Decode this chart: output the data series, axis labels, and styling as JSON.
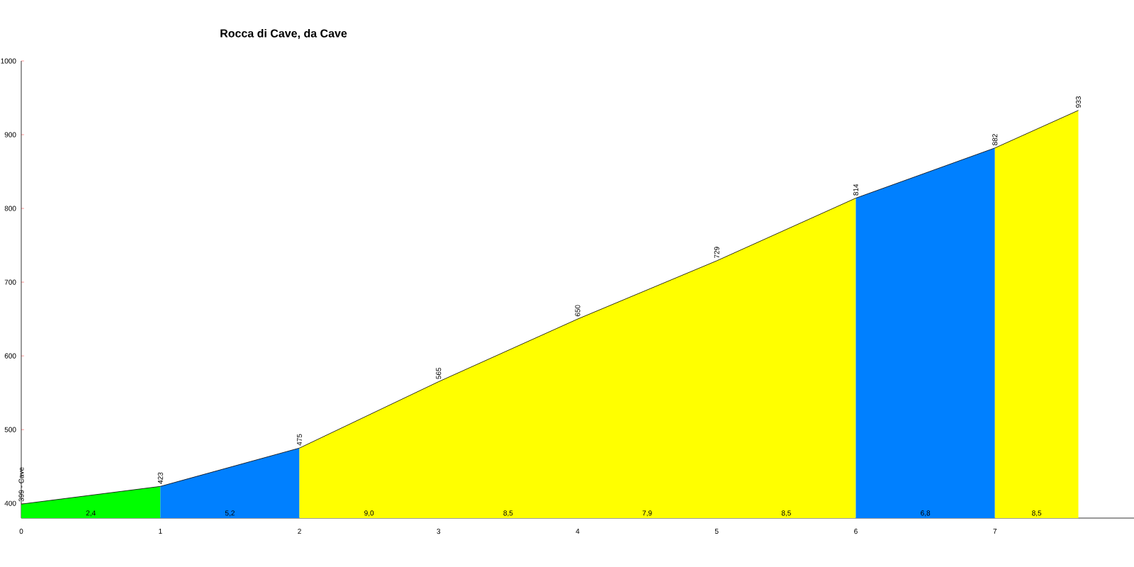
{
  "chart_data": {
    "type": "area",
    "title": "Rocca di Cave, da Cave",
    "xlim": [
      0,
      8
    ],
    "xticks": [
      0,
      1,
      2,
      3,
      4,
      5,
      6,
      7
    ],
    "ylim": [
      380,
      1000
    ],
    "yticks": [
      400,
      500,
      600,
      700,
      800,
      900,
      1000
    ],
    "grid": false,
    "series": [
      {
        "color": "#00ff00",
        "x": [
          0,
          1
        ],
        "values": [
          399,
          423
        ]
      },
      {
        "color": "#0080ff",
        "x": [
          1,
          2
        ],
        "values": [
          423,
          475
        ]
      },
      {
        "color": "#ffff00",
        "x": [
          2,
          3,
          4,
          5,
          6
        ],
        "values": [
          475,
          565,
          650,
          729,
          814
        ]
      },
      {
        "color": "#0080ff",
        "x": [
          6,
          7
        ],
        "values": [
          814,
          882
        ]
      },
      {
        "color": "#ffff00",
        "x": [
          7,
          7.6
        ],
        "values": [
          882,
          933
        ]
      },
      {
        "type": "line",
        "color": "#000000",
        "x": [
          0,
          1,
          2,
          3,
          4,
          5,
          6,
          7,
          7.6
        ],
        "values": [
          399,
          423,
          475,
          565,
          650,
          729,
          814,
          882,
          933
        ],
        "value_labels": [
          "399 - Cave",
          "423",
          "475",
          "565",
          "650",
          "729",
          "814",
          "882",
          "933"
        ]
      }
    ],
    "annotations": [
      {
        "text": "2,4",
        "x": 0.5,
        "y": 380
      },
      {
        "text": "5,2",
        "x": 1.5,
        "y": 380
      },
      {
        "text": "9,0",
        "x": 2.5,
        "y": 380
      },
      {
        "text": "8,5",
        "x": 3.5,
        "y": 380
      },
      {
        "text": "7,9",
        "x": 4.5,
        "y": 380
      },
      {
        "text": "8,5",
        "x": 5.5,
        "y": 380
      },
      {
        "text": "6,8",
        "x": 6.5,
        "y": 380
      },
      {
        "text": "8,5",
        "x": 7.3,
        "y": 380
      }
    ]
  }
}
